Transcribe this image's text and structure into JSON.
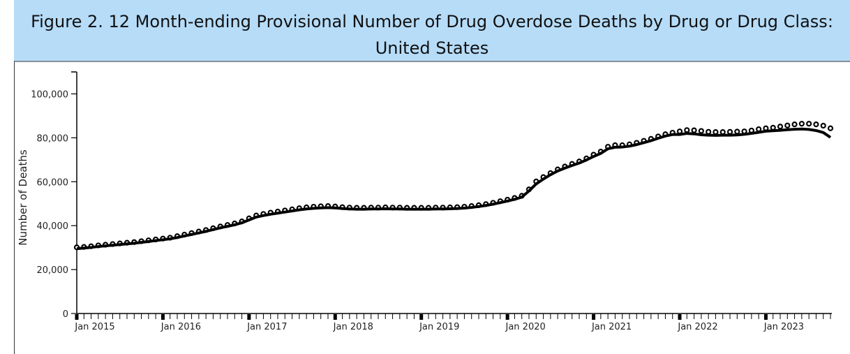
{
  "chart_data": {
    "type": "line",
    "title": "Figure 2. 12 Month-ending Provisional Number of Drug Overdose Deaths by Drug or Drug Class: United States",
    "y_label": "Number of Deaths",
    "categories": [
      "Jan 2015",
      null,
      null,
      null,
      null,
      null,
      null,
      null,
      null,
      null,
      null,
      null,
      "Jan 2016",
      null,
      null,
      null,
      null,
      null,
      null,
      null,
      null,
      null,
      null,
      null,
      "Jan 2017",
      null,
      null,
      null,
      null,
      null,
      null,
      null,
      null,
      null,
      null,
      null,
      "Jan 2018",
      null,
      null,
      null,
      null,
      null,
      null,
      null,
      null,
      null,
      null,
      null,
      "Jan 2019",
      null,
      null,
      null,
      null,
      null,
      null,
      null,
      null,
      null,
      null,
      null,
      "Jan 2020",
      null,
      null,
      null,
      null,
      null,
      null,
      null,
      null,
      null,
      null,
      null,
      "Jan 2021",
      null,
      null,
      null,
      null,
      null,
      null,
      null,
      null,
      null,
      null,
      null,
      "Jan 2022",
      null,
      null,
      null,
      null,
      null,
      null,
      null,
      null,
      null,
      null,
      null,
      "Jan 2023",
      null,
      null,
      null,
      null,
      null,
      null,
      null,
      null,
      null
    ],
    "series": [
      {
        "style": "markers",
        "color": "#000000",
        "values": [
          29800,
          30000,
          30300,
          30700,
          31000,
          31300,
          31600,
          31900,
          32200,
          32600,
          33000,
          33400,
          33800,
          34200,
          34900,
          35600,
          36300,
          37000,
          37700,
          38500,
          39300,
          40000,
          40700,
          41600,
          43000,
          44300,
          45000,
          45600,
          46100,
          46600,
          47100,
          47600,
          48000,
          48300,
          48500,
          48600,
          48400,
          48100,
          47900,
          47800,
          47800,
          47900,
          47900,
          48000,
          47900,
          47900,
          47800,
          47800,
          47800,
          47800,
          47900,
          47900,
          48000,
          48100,
          48300,
          48600,
          49000,
          49500,
          50100,
          50800,
          51500,
          52300,
          53300,
          56200,
          59800,
          61800,
          63600,
          65300,
          66600,
          67800,
          68900,
          70300,
          72000,
          73400,
          75600,
          76300,
          76300,
          76700,
          77400,
          78300,
          79200,
          80300,
          81300,
          82000,
          82600,
          83200,
          83100,
          82800,
          82400,
          82300,
          82300,
          82400,
          82500,
          82600,
          83000,
          83600,
          84000,
          84300,
          84800,
          85300,
          85800,
          86100,
          86100,
          85800,
          85200,
          84000
        ]
      },
      {
        "style": "line",
        "color": "#000000",
        "values": [
          29500,
          29800,
          30100,
          30500,
          30800,
          31100,
          31400,
          31700,
          32000,
          32400,
          32800,
          33200,
          33600,
          34000,
          34600,
          35300,
          36000,
          36700,
          37400,
          38200,
          39000,
          39700,
          40400,
          41300,
          42600,
          43900,
          44600,
          45200,
          45700,
          46200,
          46700,
          47200,
          47600,
          47900,
          48100,
          48200,
          48100,
          47800,
          47600,
          47500,
          47500,
          47600,
          47600,
          47700,
          47600,
          47600,
          47500,
          47500,
          47500,
          47500,
          47600,
          47600,
          47700,
          47800,
          48000,
          48300,
          48700,
          49200,
          49800,
          50500,
          51200,
          52000,
          53000,
          55800,
          59000,
          61200,
          63200,
          64900,
          66200,
          67400,
          68500,
          69900,
          71500,
          72900,
          75000,
          75700,
          75800,
          76200,
          76900,
          77800,
          78700,
          79800,
          80800,
          81500,
          81500,
          82000,
          81800,
          81400,
          81200,
          81100,
          81200,
          81200,
          81300,
          81600,
          82000,
          82500,
          83000,
          83200,
          83400,
          83700,
          83900,
          84000,
          83800,
          83300,
          82400,
          80200
        ]
      }
    ],
    "ylim": [
      0,
      110000
    ],
    "yticks": [
      0,
      {
        "value": 20000,
        "label": "20,000"
      },
      {
        "value": 40000,
        "label": "40,000"
      },
      {
        "value": 60000,
        "label": "60,000"
      },
      {
        "value": 80000,
        "label": "80,000"
      },
      {
        "value": 100000,
        "label": "100,000"
      }
    ]
  }
}
